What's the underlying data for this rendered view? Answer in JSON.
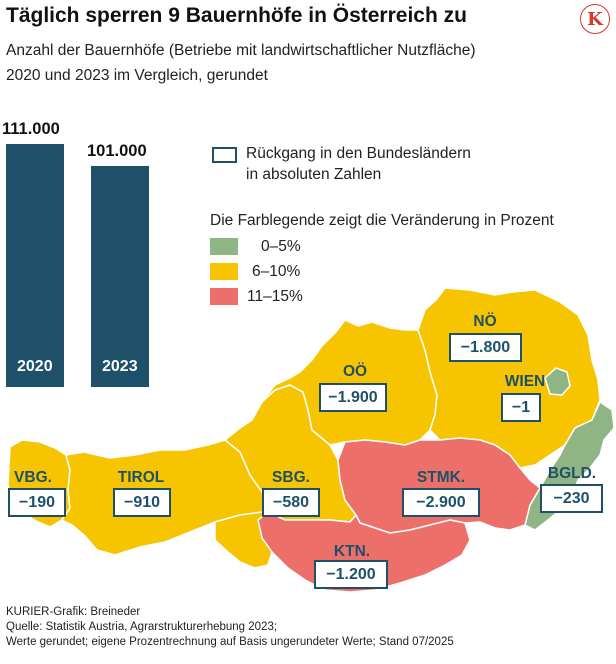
{
  "header": {
    "title": "Täglich sperren 9 Bauernhöfe in Österreich zu",
    "subtitle_line1": "Anzahl der Bauernhöfe (Betriebe mit landwirtschaftlicher Nutzfläche)",
    "subtitle_line2": "2020 und 2023 im Vergleich, gerundet",
    "logo_letter": "K"
  },
  "legend": {
    "box_label_line1": "Rückgang in den Bundesländern",
    "box_label_line2": "in absoluten Zahlen",
    "color_heading": "Die Farblegende zeigt die Veränderung in Prozent",
    "items": [
      {
        "label": "0–5%",
        "color": "#8fb585"
      },
      {
        "label": "6–10%",
        "color": "#f6c400"
      },
      {
        "label": "11–15%",
        "color": "#ec6f6a"
      }
    ],
    "outline_color": "#1e5169"
  },
  "chart_data": [
    {
      "type": "bar",
      "categories": [
        "2020",
        "2023"
      ],
      "values": [
        111000,
        101000
      ],
      "value_labels": [
        "111.000",
        "101.000"
      ],
      "bar_color": "#1e5169"
    },
    {
      "type": "choropleth",
      "regions": [
        {
          "name": "VBG.",
          "change": "−190",
          "category": "6–10%"
        },
        {
          "name": "TIROL",
          "change": "−910",
          "category": "6–10%"
        },
        {
          "name": "SBG.",
          "change": "−580",
          "category": "6–10%"
        },
        {
          "name": "OÖ",
          "change": "−1.900",
          "category": "6–10%"
        },
        {
          "name": "NÖ",
          "change": "−1.800",
          "category": "6–10%"
        },
        {
          "name": "WIEN",
          "change": "−1",
          "category": "0–5%"
        },
        {
          "name": "BGLD.",
          "change": "−230",
          "category": "0–5%"
        },
        {
          "name": "STMK.",
          "change": "−2.900",
          "category": "11–15%"
        },
        {
          "name": "KTN.",
          "change": "−1.200",
          "category": "11–15%"
        }
      ]
    }
  ],
  "footer": {
    "line1": "KURIER-Grafik: Breineder",
    "line2": "Quelle: Statistik Austria, Agrarstrukturerhebung 2023;",
    "line3": "Werte gerundet; eigene Prozentrechnung auf Basis ungerundeter Werte; Stand 07/2025"
  }
}
